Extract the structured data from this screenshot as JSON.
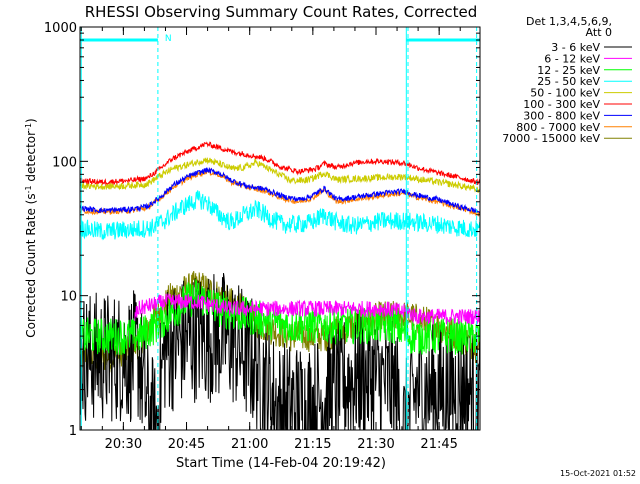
{
  "chart_data": {
    "type": "line",
    "title": "RHESSI Observing Summary Count Rates, Corrected",
    "xlabel": "Start Time (14-Feb-04 20:19:42)",
    "ylabel": "Corrected Count Rate (s⁻¹ detector⁻¹)",
    "ylabel_parts": {
      "main": "Corrected Count Rate (s",
      "sup1": "-1",
      "mid": " detector",
      "sup2": "-1",
      "end": ")"
    },
    "x_units": "minutes after 20:19:42 UT",
    "xlim": [
      0,
      95
    ],
    "ylim": [
      1,
      1000
    ],
    "y_scale": "log",
    "x_ticks": [
      {
        "value": 10.3,
        "label": "20:30"
      },
      {
        "value": 25.3,
        "label": "20:45"
      },
      {
        "value": 40.3,
        "label": "21:00"
      },
      {
        "value": 55.3,
        "label": "21:15"
      },
      {
        "value": 70.3,
        "label": "21:30"
      },
      {
        "value": 85.3,
        "label": "21:45"
      }
    ],
    "y_ticks": [
      {
        "value": 1,
        "label": "1"
      },
      {
        "value": 10,
        "label": "10"
      },
      {
        "value": 100,
        "label": "100"
      },
      {
        "value": 1000,
        "label": "1000"
      }
    ],
    "legend_header": [
      "Det 1,3,4,5,6,9,",
      "Att 0"
    ],
    "legend_position": "right",
    "timestamp": "15-Oct-2021 01:52",
    "annotations": [
      {
        "type": "flag_bar",
        "color": "#00ffff",
        "value": 800,
        "x": [
          0,
          18.5
        ],
        "label": "N"
      },
      {
        "type": "flag_bar",
        "color": "#00ffff",
        "value": 800,
        "x": [
          77.5,
          95
        ]
      }
    ],
    "vlines": [
      {
        "x": 0.3,
        "style": "solid",
        "color": "#00ffff"
      },
      {
        "x": 18.5,
        "style": "dashed",
        "color": "#00ffff"
      },
      {
        "x": 77.5,
        "style": "solid",
        "color": "#00ffff"
      },
      {
        "x": 77.9,
        "style": "dashed",
        "color": "#00ffff"
      },
      {
        "x": 94.2,
        "style": "dashed",
        "color": "#00ffff"
      }
    ],
    "series": [
      {
        "name": "3 - 6 keV",
        "color": "#000000",
        "noise": 0.5,
        "points": [
          [
            0,
            3.5
          ],
          [
            14,
            3.5
          ],
          [
            16,
            1.5
          ],
          [
            18,
            1
          ],
          [
            20,
            4
          ],
          [
            27,
            5
          ],
          [
            35,
            5
          ],
          [
            42,
            3
          ],
          [
            47,
            1.5
          ],
          [
            55,
            1.5
          ],
          [
            60,
            2
          ],
          [
            65,
            2.5
          ],
          [
            70,
            2.5
          ],
          [
            75,
            2
          ],
          [
            77,
            1
          ],
          [
            80,
            2
          ],
          [
            95,
            2
          ]
        ]
      },
      {
        "name": "6 - 12 keV",
        "color": "#ff00ff",
        "noise": 0.06,
        "points": [
          [
            13,
            7
          ],
          [
            14,
            8
          ],
          [
            20,
            9
          ],
          [
            28,
            9
          ],
          [
            35,
            8
          ],
          [
            45,
            8
          ],
          [
            55,
            8
          ],
          [
            65,
            8
          ],
          [
            72,
            8
          ],
          [
            78,
            7.5
          ],
          [
            80,
            7
          ],
          [
            95,
            7
          ]
        ]
      },
      {
        "name": "12 - 25 keV",
        "color": "#00ff00",
        "noise": 0.14,
        "points": [
          [
            0,
            5
          ],
          [
            14,
            5
          ],
          [
            18,
            6
          ],
          [
            25,
            9
          ],
          [
            28,
            10
          ],
          [
            33,
            8
          ],
          [
            40,
            7
          ],
          [
            50,
            6
          ],
          [
            60,
            6
          ],
          [
            70,
            6
          ],
          [
            75,
            6
          ],
          [
            78,
            5
          ],
          [
            95,
            5
          ]
        ]
      },
      {
        "name": "25 - 50 keV",
        "color": "#00ffff",
        "noise": 0.07,
        "points": [
          [
            0,
            32
          ],
          [
            5,
            30
          ],
          [
            12,
            31
          ],
          [
            17,
            32
          ],
          [
            20,
            36
          ],
          [
            24,
            45
          ],
          [
            28,
            52
          ],
          [
            30,
            50
          ],
          [
            33,
            40
          ],
          [
            36,
            35
          ],
          [
            39,
            40
          ],
          [
            42,
            44
          ],
          [
            45,
            38
          ],
          [
            48,
            34
          ],
          [
            52,
            34
          ],
          [
            55,
            35
          ],
          [
            58,
            40
          ],
          [
            61,
            35
          ],
          [
            65,
            33
          ],
          [
            72,
            36
          ],
          [
            77,
            36
          ],
          [
            80,
            35
          ],
          [
            85,
            34
          ],
          [
            90,
            32
          ],
          [
            95,
            31
          ]
        ]
      },
      {
        "name": "50 - 100 keV",
        "color": "#cccc00",
        "noise": 0.025,
        "points": [
          [
            0,
            66
          ],
          [
            5,
            65
          ],
          [
            12,
            66
          ],
          [
            16,
            68
          ],
          [
            19,
            78
          ],
          [
            22,
            88
          ],
          [
            27,
            97
          ],
          [
            30,
            103
          ],
          [
            33,
            96
          ],
          [
            36,
            88
          ],
          [
            39,
            90
          ],
          [
            42,
            98
          ],
          [
            46,
            84
          ],
          [
            50,
            72
          ],
          [
            53,
            72
          ],
          [
            55,
            74
          ],
          [
            58,
            82
          ],
          [
            61,
            73
          ],
          [
            65,
            74
          ],
          [
            72,
            76
          ],
          [
            77,
            77
          ],
          [
            80,
            74
          ],
          [
            85,
            70
          ],
          [
            90,
            66
          ],
          [
            95,
            61
          ]
        ]
      },
      {
        "name": "100 - 300 keV",
        "color": "#ff0000",
        "noise": 0.02,
        "points": [
          [
            0,
            72
          ],
          [
            5,
            70
          ],
          [
            12,
            72
          ],
          [
            16,
            75
          ],
          [
            19,
            88
          ],
          [
            22,
            105
          ],
          [
            26,
            120
          ],
          [
            30,
            135
          ],
          [
            33,
            127
          ],
          [
            36,
            118
          ],
          [
            40,
            112
          ],
          [
            44,
            105
          ],
          [
            48,
            90
          ],
          [
            52,
            84
          ],
          [
            56,
            88
          ],
          [
            58,
            96
          ],
          [
            61,
            90
          ],
          [
            64,
            96
          ],
          [
            68,
            100
          ],
          [
            72,
            100
          ],
          [
            77,
            97
          ],
          [
            80,
            90
          ],
          [
            85,
            82
          ],
          [
            90,
            76
          ],
          [
            95,
            69
          ]
        ]
      },
      {
        "name": "300 - 800 keV",
        "color": "#0000ff",
        "noise": 0.02,
        "points": [
          [
            0,
            45
          ],
          [
            5,
            43
          ],
          [
            12,
            44
          ],
          [
            16,
            46
          ],
          [
            19,
            54
          ],
          [
            22,
            66
          ],
          [
            26,
            78
          ],
          [
            30,
            86
          ],
          [
            33,
            82
          ],
          [
            36,
            72
          ],
          [
            40,
            65
          ],
          [
            44,
            62
          ],
          [
            48,
            55
          ],
          [
            52,
            52
          ],
          [
            55,
            55
          ],
          [
            58,
            63
          ],
          [
            61,
            52
          ],
          [
            65,
            54
          ],
          [
            72,
            58
          ],
          [
            77,
            60
          ],
          [
            80,
            56
          ],
          [
            85,
            52
          ],
          [
            90,
            46
          ],
          [
            95,
            42
          ]
        ]
      },
      {
        "name": "800 - 7000 keV",
        "color": "#ff8000",
        "noise": 0.02,
        "points": [
          [
            0,
            43
          ],
          [
            5,
            42
          ],
          [
            12,
            43
          ],
          [
            16,
            45
          ],
          [
            19,
            53
          ],
          [
            22,
            64
          ],
          [
            26,
            76
          ],
          [
            30,
            84
          ],
          [
            33,
            80
          ],
          [
            36,
            70
          ],
          [
            40,
            64
          ],
          [
            44,
            60
          ],
          [
            48,
            53
          ],
          [
            52,
            50
          ],
          [
            55,
            53
          ],
          [
            58,
            61
          ],
          [
            61,
            50
          ],
          [
            65,
            52
          ],
          [
            72,
            56
          ],
          [
            77,
            58
          ],
          [
            80,
            54
          ],
          [
            85,
            50
          ],
          [
            90,
            45
          ],
          [
            95,
            41
          ]
        ]
      },
      {
        "name": "7000 - 15000 keV",
        "color": "#808000",
        "noise": 0.12,
        "points": [
          [
            0,
            3.5
          ],
          [
            10,
            3.5
          ],
          [
            14,
            4.5
          ],
          [
            18,
            7
          ],
          [
            22,
            10
          ],
          [
            28,
            12
          ],
          [
            33,
            10
          ],
          [
            38,
            8
          ],
          [
            43,
            6
          ],
          [
            50,
            5
          ],
          [
            58,
            5
          ],
          [
            65,
            6
          ],
          [
            72,
            7
          ],
          [
            78,
            7
          ],
          [
            85,
            6
          ],
          [
            90,
            5
          ],
          [
            95,
            4
          ]
        ]
      }
    ]
  }
}
